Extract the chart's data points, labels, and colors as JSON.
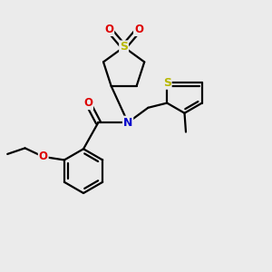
{
  "bg_color": "#ebebeb",
  "atom_colors": {
    "S": "#b8b800",
    "N": "#0000cc",
    "O": "#dd0000",
    "C": "#000000"
  },
  "bond_color": "#000000",
  "bond_lw": 1.6,
  "figsize": [
    3.0,
    3.0
  ],
  "dpi": 100
}
